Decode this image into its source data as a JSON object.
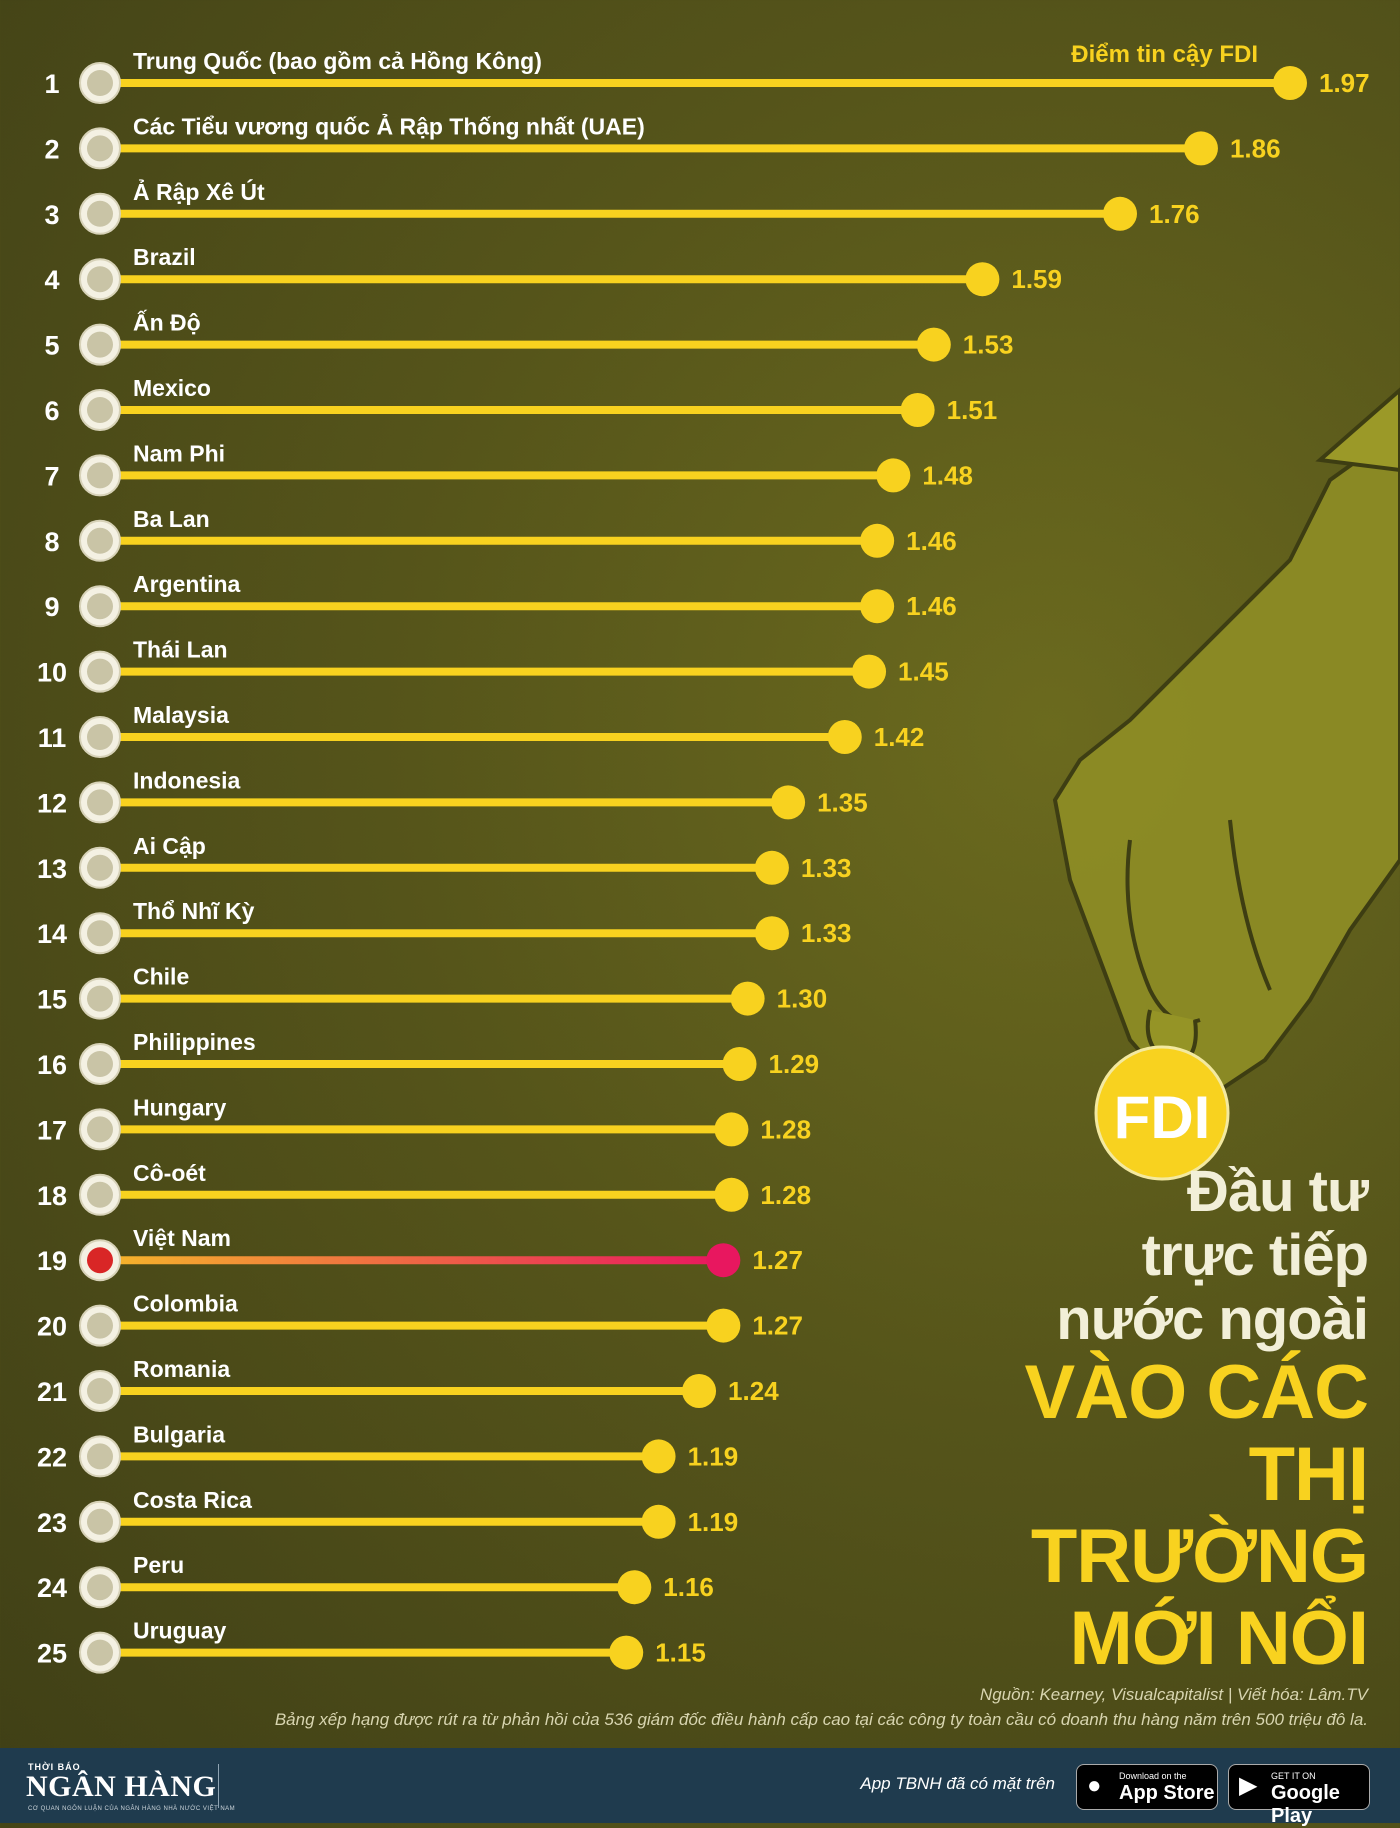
{
  "chart_data": {
    "type": "bar",
    "legend": "Điểm tin cậy FDI",
    "categories": [
      "Trung Quốc (bao gồm cả Hồng Kông)",
      "Các Tiểu vương quốc Ả Rập Thống nhất (UAE)",
      "Ả Rập Xê Út",
      "Brazil",
      "Ấn Độ",
      "Mexico",
      "Nam Phi",
      "Ba Lan",
      "Argentina",
      "Thái Lan",
      "Malaysia",
      "Indonesia",
      "Ai Cập",
      "Thổ Nhĩ Kỳ",
      "Chile",
      "Philippines",
      "Hungary",
      "Cô-oét",
      "Việt Nam",
      "Colombia",
      "Romania",
      "Bulgaria",
      "Costa Rica",
      "Peru",
      "Uruguay"
    ],
    "ranks": [
      "1",
      "2",
      "3",
      "4",
      "5",
      "6",
      "7",
      "8",
      "9",
      "10",
      "11",
      "12",
      "13",
      "14",
      "15",
      "16",
      "17",
      "18",
      "19",
      "20",
      "21",
      "22",
      "23",
      "24",
      "25"
    ],
    "values": [
      1.97,
      1.86,
      1.76,
      1.59,
      1.53,
      1.51,
      1.48,
      1.46,
      1.46,
      1.45,
      1.42,
      1.35,
      1.33,
      1.33,
      1.3,
      1.29,
      1.28,
      1.28,
      1.27,
      1.27,
      1.24,
      1.19,
      1.19,
      1.16,
      1.15
    ],
    "value_labels": [
      "1.97",
      "1.86",
      "1.76",
      "1.59",
      "1.53",
      "1.51",
      "1.48",
      "1.46",
      "1.46",
      "1.45",
      "1.42",
      "1.35",
      "1.33",
      "1.33",
      "1.30",
      "1.29",
      "1.28",
      "1.28",
      "1.27",
      "1.27",
      "1.24",
      "1.19",
      "1.19",
      "1.16",
      "1.15"
    ],
    "highlight": "Việt Nam",
    "colors": {
      "bar": "#f8d21f",
      "highlight_start": "#f5b62a",
      "highlight_end": "#e8175f",
      "text": "#ffffff",
      "value_text": "#f8d21f"
    }
  },
  "badge": {
    "text": "FDI"
  },
  "title": {
    "line1": "Đầu tư",
    "line2": "trực tiếp",
    "line3": "nước ngoài",
    "line4": "VÀO CÁC",
    "line5": "THỊ TRƯỜNG",
    "line6": "MỚI NỔI"
  },
  "source": {
    "line1": "Nguồn: Kearney, Visualcapitalist | Viết hóa: Lâm.TV",
    "line2": "Bảng xếp hạng được rút ra từ phản hồi của 536 giám đốc điều hành cấp cao tại các công ty toàn cầu có doanh thu hàng năm trên 500 triệu đô la."
  },
  "footer": {
    "logo_small": "THỜI BÁO",
    "logo_main": "NGÂN HÀNG",
    "logo_tag": "CƠ QUAN NGÔN LUẬN CỦA NGÂN HÀNG NHÀ NƯỚC VIỆT NAM",
    "app_text": "App TBNH đã có mặt trên",
    "apple_small": "Download on the",
    "apple_big": "App Store",
    "google_small": "GET IT ON",
    "google_big": "Google Play"
  }
}
